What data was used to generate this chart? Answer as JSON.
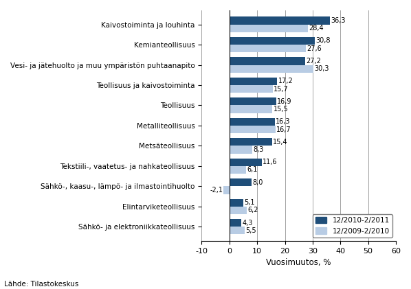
{
  "categories": [
    "Kaivostoiminta ja louhinta",
    "Kemianteollisuus",
    "Vesi- ja jätehuolto ja muu ympäristön puhtaanapito",
    "Teollisuus ja kaivostoiminta",
    "Teollisuus",
    "Metalliteollisuus",
    "Metsäteollisuus",
    "Tekstiili-, vaatetus- ja nahkateollisuus",
    "Sähkö-, kaasu-, lämpö- ja ilmastointihuolto",
    "Elintarviketeollisuus",
    "Sähkö- ja elektroniikkateollisuus"
  ],
  "series1_values": [
    36.3,
    30.8,
    27.2,
    17.2,
    16.9,
    16.3,
    15.4,
    11.6,
    8.0,
    5.1,
    4.3
  ],
  "series2_values": [
    28.4,
    27.6,
    30.3,
    15.7,
    15.5,
    16.7,
    8.3,
    6.1,
    -2.1,
    6.2,
    5.5
  ],
  "series1_label": "12/2010-2/2011",
  "series2_label": "12/2009-2/2010",
  "series1_color": "#1F4E79",
  "series2_color": "#B8CCE4",
  "xlabel": "Vuosimuutos, %",
  "xlim": [
    -10,
    60
  ],
  "xticks": [
    -10,
    0,
    10,
    20,
    30,
    40,
    50,
    60
  ],
  "source": "Lähde: Tilastokeskus",
  "bar_height": 0.38,
  "value_fontsize": 7.0
}
